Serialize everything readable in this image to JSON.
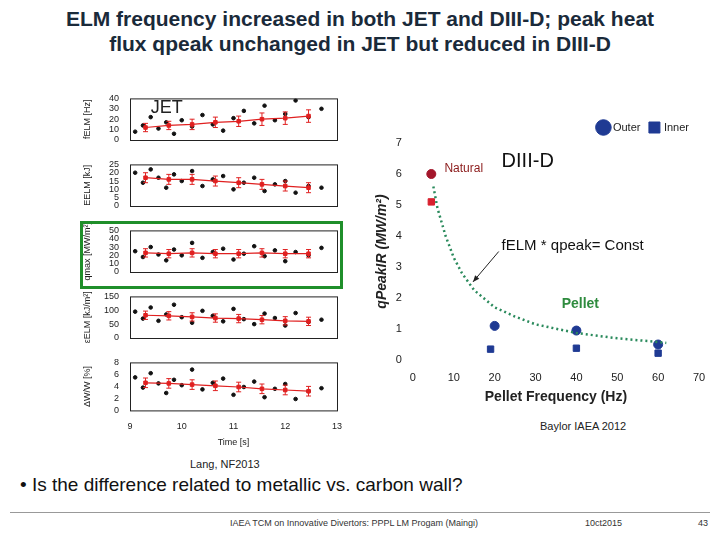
{
  "slide": {
    "title": [
      "ELM frequency increased in both JET and DIII-D; peak heat",
      "flux qpeak unchanged in JET but reduced in DIII-D"
    ],
    "source_jet": "Lang, NF2013",
    "source_diiid": "Baylor IAEA 2012",
    "bullet": "• Is the difference related to metallic vs. carbon wall?",
    "footer": {
      "event": "IAEA TCM on Innovative Divertors: PPPL LM Progam (Maingi)",
      "date": "10ct2015",
      "page": 43
    }
  },
  "chart_data": [
    {
      "type": "scatter",
      "y_label": "fELM [Hz]",
      "xlim": [
        9,
        13
      ],
      "xticks": [
        9,
        10,
        11,
        12,
        13
      ],
      "ylim": [
        0,
        40
      ],
      "yticks": [
        0,
        10,
        20,
        30,
        40
      ],
      "grid": false,
      "tick_labels": "y",
      "annotations": [
        "JET"
      ],
      "series": [
        {
          "color": "#111111",
          "marker": "circle",
          "x": [
            9.1,
            9.25,
            9.4,
            9.55,
            9.7,
            9.85,
            10.0,
            10.2,
            10.4,
            10.6,
            10.8,
            11.0,
            11.2,
            11.4,
            11.6,
            11.8,
            12.0,
            12.2,
            12.45,
            12.7
          ],
          "values": [
            8,
            14,
            22,
            11,
            17,
            6,
            19,
            13,
            24,
            15,
            9,
            21,
            28,
            16,
            33,
            19,
            25,
            38,
            22,
            30
          ]
        },
        {
          "type": "line",
          "color": "#e02020",
          "marker": "square",
          "line_style": "solid",
          "x": [
            9.3,
            9.75,
            10.2,
            10.65,
            11.1,
            11.55,
            12.0,
            12.45
          ],
          "values": [
            12,
            14,
            15,
            17,
            18,
            20,
            21,
            23
          ],
          "errors": [
            4,
            4,
            5,
            5,
            5,
            6,
            6,
            6
          ]
        }
      ]
    },
    {
      "type": "scatter",
      "y_label": "EELM [kJ]",
      "xlim": [
        9,
        13
      ],
      "xticks": [
        9,
        10,
        11,
        12,
        13
      ],
      "ylim": [
        0,
        25
      ],
      "yticks": [
        0,
        5,
        10,
        15,
        20,
        25
      ],
      "grid": false,
      "tick_labels": "y",
      "series": [
        {
          "color": "#111111",
          "marker": "circle",
          "x": [
            9.1,
            9.25,
            9.4,
            9.55,
            9.7,
            9.85,
            10.0,
            10.2,
            10.4,
            10.6,
            10.8,
            11.0,
            11.2,
            11.4,
            11.6,
            11.8,
            12.0,
            12.2,
            12.45,
            12.7
          ],
          "values": [
            20,
            14,
            22,
            17,
            11,
            19,
            15,
            21,
            12,
            16,
            18,
            10,
            14,
            17,
            9,
            13,
            15,
            8,
            12,
            11
          ]
        },
        {
          "type": "line",
          "color": "#e02020",
          "marker": "square",
          "line_style": "solid",
          "x": [
            9.3,
            9.75,
            10.2,
            10.65,
            11.1,
            11.55,
            12.0,
            12.45
          ],
          "values": [
            17,
            16,
            16,
            15,
            14,
            13,
            12,
            11
          ],
          "errors": [
            3,
            3,
            3,
            3,
            3,
            3,
            3,
            3
          ]
        }
      ]
    },
    {
      "type": "scatter",
      "y_label": "qmax [MW/m²]",
      "xlim": [
        9,
        13
      ],
      "xticks": [
        9,
        10,
        11,
        12,
        13
      ],
      "ylim": [
        0,
        50
      ],
      "yticks": [
        0,
        10,
        20,
        30,
        40,
        50
      ],
      "grid": false,
      "tick_labels": "y",
      "series": [
        {
          "color": "#111111",
          "marker": "circle",
          "x": [
            9.1,
            9.25,
            9.4,
            9.55,
            9.7,
            9.85,
            10.0,
            10.2,
            10.4,
            10.6,
            10.8,
            11.0,
            11.2,
            11.4,
            11.6,
            11.8,
            12.0,
            12.2,
            12.45,
            12.7
          ],
          "values": [
            25,
            18,
            30,
            21,
            14,
            27,
            20,
            35,
            17,
            24,
            28,
            15,
            22,
            31,
            19,
            26,
            13,
            24,
            20,
            29
          ]
        },
        {
          "type": "line",
          "color": "#e02020",
          "marker": "square",
          "line_style": "solid",
          "x": [
            9.3,
            9.75,
            10.2,
            10.65,
            11.1,
            11.55,
            12.0,
            12.45
          ],
          "values": [
            23,
            22,
            23,
            22,
            22,
            23,
            22,
            22
          ],
          "errors": [
            5,
            5,
            5,
            5,
            5,
            5,
            5,
            5
          ]
        }
      ]
    },
    {
      "type": "scatter",
      "y_label": "εELM [kJ/m²]",
      "xlim": [
        9,
        13
      ],
      "xticks": [
        9,
        10,
        11,
        12,
        13
      ],
      "ylim": [
        0,
        150
      ],
      "yticks": [
        0,
        50,
        100,
        150
      ],
      "grid": false,
      "tick_labels": "y",
      "series": [
        {
          "color": "#111111",
          "marker": "circle",
          "x": [
            9.1,
            9.25,
            9.4,
            9.55,
            9.7,
            9.85,
            10.0,
            10.2,
            10.4,
            10.6,
            10.8,
            11.0,
            11.2,
            11.4,
            11.6,
            11.8,
            12.0,
            12.2,
            12.45,
            12.7
          ],
          "values": [
            95,
            70,
            110,
            62,
            85,
            120,
            75,
            55,
            98,
            80,
            60,
            105,
            68,
            50,
            88,
            72,
            45,
            90,
            58,
            66
          ]
        },
        {
          "type": "line",
          "color": "#e02020",
          "marker": "square",
          "line_style": "solid",
          "x": [
            9.3,
            9.75,
            10.2,
            10.65,
            11.1,
            11.55,
            12.0,
            12.45
          ],
          "values": [
            82,
            80,
            76,
            72,
            70,
            66,
            62,
            60
          ],
          "errors": [
            15,
            15,
            15,
            15,
            15,
            15,
            15,
            15
          ]
        }
      ]
    },
    {
      "type": "scatter",
      "y_label": "ΔW/W [%]",
      "x_label": "Time [s]",
      "xlim": [
        9,
        13
      ],
      "xticks": [
        9,
        10,
        11,
        12,
        13
      ],
      "ylim": [
        0,
        8
      ],
      "yticks": [
        0,
        2,
        4,
        6,
        8
      ],
      "grid": false,
      "series": [
        {
          "color": "#111111",
          "marker": "circle",
          "x": [
            9.1,
            9.25,
            9.4,
            9.55,
            9.7,
            9.85,
            10.0,
            10.2,
            10.4,
            10.6,
            10.8,
            11.0,
            11.2,
            11.4,
            11.6,
            11.8,
            12.0,
            12.2,
            12.45,
            12.7
          ],
          "values": [
            5.5,
            3.8,
            6.2,
            4.5,
            2.9,
            5.1,
            4.2,
            6.8,
            3.5,
            4.6,
            5.3,
            2.6,
            3.9,
            4.8,
            2.2,
            3.6,
            4.4,
            1.9,
            3.2,
            3.7
          ]
        },
        {
          "type": "line",
          "color": "#e02020",
          "marker": "square",
          "line_style": "solid",
          "x": [
            9.3,
            9.75,
            10.2,
            10.65,
            11.1,
            11.55,
            12.0,
            12.45
          ],
          "values": [
            4.6,
            4.5,
            4.3,
            4.1,
            3.9,
            3.6,
            3.4,
            3.2
          ],
          "errors": [
            0.8,
            0.8,
            0.8,
            0.8,
            0.8,
            0.8,
            0.8,
            0.8
          ]
        }
      ]
    },
    {
      "type": "scatter",
      "x_label": "Pellet Frequency (Hz)",
      "y_label": "qPeakIR (MW/m²)",
      "xlim": [
        0,
        70
      ],
      "xticks": [
        0,
        10,
        20,
        30,
        40,
        50,
        60,
        70
      ],
      "ylim": [
        0,
        7
      ],
      "yticks": [
        0,
        1,
        2,
        3,
        4,
        5,
        6,
        7
      ],
      "grid": false,
      "legend": "upper right",
      "annotations": [
        "Natural",
        "DIII-D",
        "fELM * qpeak= Const",
        "Pellet"
      ],
      "series": [
        {
          "name": "Outer",
          "color": "#1f3a93",
          "colors": [
            "#a3162b",
            "#1f3a93",
            "#1f3a93",
            "#1f3a93"
          ],
          "marker": "circle",
          "x": [
            4.5,
            20,
            40,
            60
          ],
          "values": [
            6.0,
            1.1,
            0.95,
            0.5
          ]
        },
        {
          "name": "Inner",
          "color": "#1f3a93",
          "colors": [
            "#d9202e",
            "#1f3a93",
            "#1f3a93",
            "#1f3a93"
          ],
          "marker": "square",
          "x": [
            4.5,
            19,
            40,
            60
          ],
          "values": [
            5.1,
            0.35,
            0.38,
            0.22
          ]
        },
        {
          "type": "line",
          "color": "#2a8a5c",
          "marker": "none",
          "line_style": "dotted",
          "x": [
            5,
            6,
            8,
            10,
            12,
            15,
            20,
            25,
            30,
            40,
            50,
            60,
            62
          ],
          "values": [
            5.6,
            4.9,
            4.0,
            3.3,
            2.8,
            2.25,
            1.7,
            1.4,
            1.15,
            0.87,
            0.7,
            0.58,
            0.55
          ]
        }
      ]
    }
  ]
}
